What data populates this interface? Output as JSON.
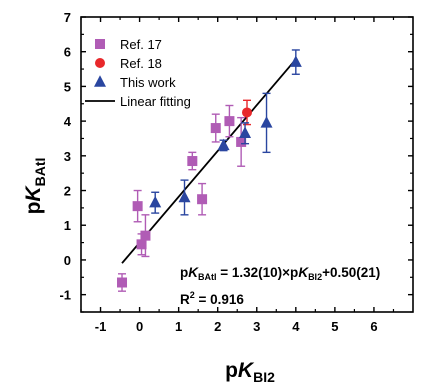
{
  "chart_data": {
    "type": "scatter",
    "xlim": [
      -1.5,
      7
    ],
    "ylim": [
      -1.5,
      7
    ],
    "x_ticks": [
      -1,
      0,
      1,
      2,
      3,
      4,
      5,
      6
    ],
    "y_ticks": [
      -1,
      0,
      1,
      2,
      3,
      4,
      5,
      6,
      7
    ],
    "legend_placement": "top-left",
    "grid": false,
    "xlabel": {
      "main": "p",
      "italic": "K",
      "sub": "BI2"
    },
    "ylabel": {
      "main": "p",
      "italic": "K",
      "sub": "BAtI"
    },
    "series": [
      {
        "name": "Ref. 17",
        "marker": "square",
        "color": "#b05cb5",
        "points": [
          {
            "x": -0.45,
            "y": -0.65,
            "err": 0.25
          },
          {
            "x": -0.05,
            "y": 1.55,
            "err": 0.45
          },
          {
            "x": 0.05,
            "y": 0.45,
            "err": 0.3
          },
          {
            "x": 0.15,
            "y": 0.7,
            "err": 0.6
          },
          {
            "x": 1.35,
            "y": 2.85,
            "err": 0.25
          },
          {
            "x": 1.6,
            "y": 1.75,
            "err": 0.45
          },
          {
            "x": 1.95,
            "y": 3.8,
            "err": 0.4
          },
          {
            "x": 2.3,
            "y": 4.0,
            "err": 0.45
          },
          {
            "x": 2.6,
            "y": 3.4,
            "err": 0.7
          }
        ]
      },
      {
        "name": "Ref. 18",
        "marker": "circle",
        "color": "#e8282b",
        "points": [
          {
            "x": 2.75,
            "y": 4.25,
            "err": 0.35
          }
        ]
      },
      {
        "name": "This work",
        "marker": "triangle",
        "color": "#2a46a0",
        "points": [
          {
            "x": 0.4,
            "y": 1.65,
            "err": 0.3
          },
          {
            "x": 1.15,
            "y": 1.8,
            "err": 0.5
          },
          {
            "x": 2.15,
            "y": 3.3,
            "err": 0.15
          },
          {
            "x": 2.7,
            "y": 3.65,
            "err": 0.3
          },
          {
            "x": 3.25,
            "y": 3.95,
            "err": 0.85
          },
          {
            "x": 4.0,
            "y": 5.7,
            "err": 0.35
          }
        ]
      }
    ],
    "fit": {
      "name": "Linear fitting",
      "slope": 1.32,
      "intercept": 0.5,
      "x_range": [
        -0.45,
        4.0
      ],
      "color": "#000000"
    },
    "equation": {
      "p1": "p",
      "k1": "K",
      "sub1": "BAtI",
      "mid": " = 1.32(10)×p",
      "k2": "K",
      "sub2": "BI2",
      "tail": "+0.50(21)",
      "r2_label": "R",
      "r2_sup": "2",
      "r2_value": " = 0.916"
    }
  }
}
